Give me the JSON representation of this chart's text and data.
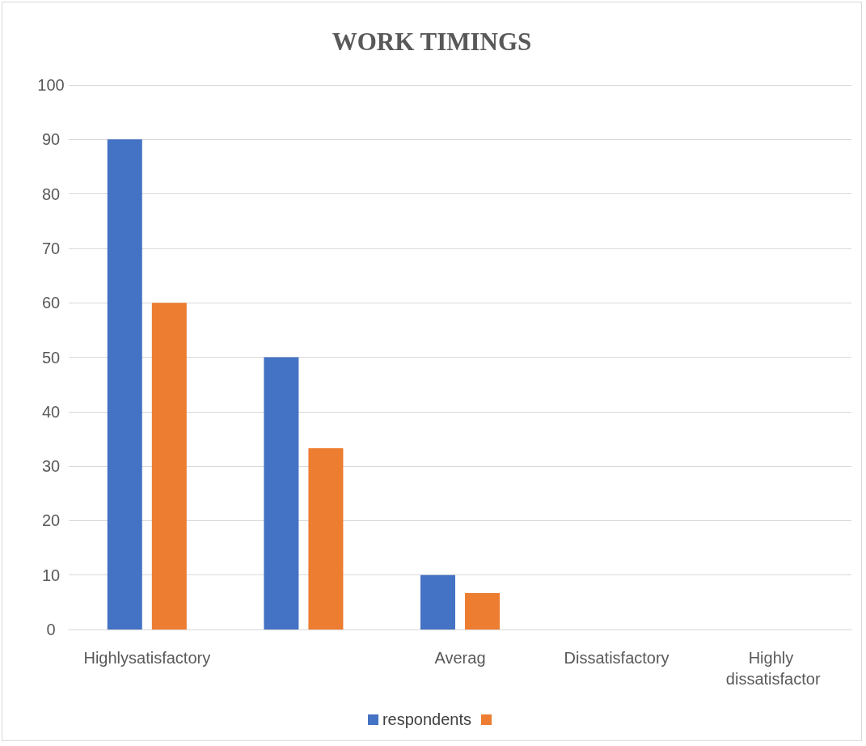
{
  "chart_data": {
    "type": "bar",
    "title": "WORK TIMINGS",
    "categories": [
      "Highlysatisfactory",
      null,
      "Averag",
      "Dissatisfactory",
      "Highly dissatisfactor"
    ],
    "series": [
      {
        "name": "respondents",
        "color": "#4472c4",
        "values": [
          90,
          50,
          10,
          0,
          0
        ]
      },
      {
        "color": "#ed7d31",
        "values": [
          60,
          33.3,
          6.7,
          0,
          0
        ]
      }
    ],
    "ylim": [
      0,
      100
    ],
    "yticks": [
      0,
      10,
      20,
      30,
      40,
      50,
      60,
      70,
      80,
      90,
      100
    ],
    "grid": "y",
    "legend": "bottom"
  }
}
